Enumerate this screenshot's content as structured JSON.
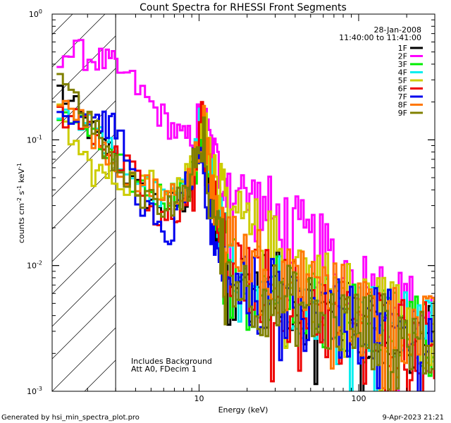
{
  "chart_data": {
    "type": "line",
    "title": "Count Spectra for RHESSI Front Segments",
    "xlabel": "Energy (keV)",
    "ylabel": "counts cm",
    "ylabel_sup1": "-2",
    "ylabel_mid": " s",
    "ylabel_sup2": "-1",
    "ylabel_end": " keV",
    "ylabel_sup3": "-1",
    "xscale": "log",
    "yscale": "log",
    "xlim": [
      1.2,
      300
    ],
    "ylim": [
      0.001,
      1
    ],
    "x_ticks": [
      {
        "v": 10,
        "label": "10"
      },
      {
        "v": 100,
        "label": "100"
      }
    ],
    "y_ticks": [
      {
        "v": 1,
        "label": "10",
        "sup": "0"
      },
      {
        "v": 0.1,
        "label": "10",
        "sup": "-1"
      },
      {
        "v": 0.01,
        "label": "10",
        "sup": "-2"
      },
      {
        "v": 0.001,
        "label": "10",
        "sup": "-3"
      }
    ],
    "hatch_limit_kev": 3,
    "date": "28-Jan-2008",
    "time_range": "11:40:00 to 11:41:00",
    "annotation1": "Includes Background",
    "annotation2": "Att A0, FDecim 1",
    "series": [
      {
        "name": "1F",
        "color": "#000000",
        "anchors": [
          [
            1.3,
            0.26
          ],
          [
            2,
            0.13
          ],
          [
            2.5,
            0.09
          ],
          [
            3,
            0.075
          ],
          [
            4,
            0.04
          ],
          [
            6,
            0.03
          ],
          [
            8,
            0.032
          ],
          [
            9.5,
            0.05
          ],
          [
            10.5,
            0.13
          ],
          [
            11.3,
            0.05
          ],
          [
            13,
            0.02
          ],
          [
            16,
            0.009
          ],
          [
            22,
            0.007
          ],
          [
            35,
            0.006
          ],
          [
            60,
            0.004
          ],
          [
            100,
            0.0035
          ],
          [
            180,
            0.0028
          ],
          [
            290,
            0.0025
          ]
        ]
      },
      {
        "name": "2F",
        "color": "#ff00ff",
        "anchors": [
          [
            1.3,
            0.49
          ],
          [
            1.8,
            0.48
          ],
          [
            2.5,
            0.42
          ],
          [
            3,
            0.38
          ],
          [
            4,
            0.27
          ],
          [
            5,
            0.19
          ],
          [
            6,
            0.15
          ],
          [
            7,
            0.12
          ],
          [
            8,
            0.1
          ],
          [
            9.5,
            0.11
          ],
          [
            10.5,
            0.14
          ],
          [
            11.5,
            0.1
          ],
          [
            13,
            0.06
          ],
          [
            17,
            0.04
          ],
          [
            25,
            0.028
          ],
          [
            40,
            0.018
          ],
          [
            60,
            0.012
          ],
          [
            90,
            0.008
          ],
          [
            140,
            0.006
          ],
          [
            200,
            0.0045
          ],
          [
            290,
            0.0038
          ]
        ]
      },
      {
        "name": "3F",
        "color": "#00ee00",
        "anchors": [
          [
            1.3,
            0.18
          ],
          [
            2,
            0.12
          ],
          [
            2.5,
            0.08
          ],
          [
            3,
            0.065
          ],
          [
            4,
            0.045
          ],
          [
            6,
            0.035
          ],
          [
            8,
            0.04
          ],
          [
            9.5,
            0.06
          ],
          [
            10.5,
            0.16
          ],
          [
            11.3,
            0.05
          ],
          [
            13,
            0.022
          ],
          [
            16,
            0.01
          ],
          [
            22,
            0.008
          ],
          [
            35,
            0.006
          ],
          [
            60,
            0.0045
          ],
          [
            100,
            0.0036
          ],
          [
            180,
            0.003
          ],
          [
            290,
            0.0026
          ]
        ]
      },
      {
        "name": "4F",
        "color": "#00eeee",
        "anchors": [
          [
            1.3,
            0.19
          ],
          [
            2,
            0.13
          ],
          [
            2.5,
            0.1
          ],
          [
            3,
            0.07
          ],
          [
            4,
            0.05
          ],
          [
            6,
            0.032
          ],
          [
            8,
            0.04
          ],
          [
            9.5,
            0.07
          ],
          [
            10.5,
            0.2
          ],
          [
            11.3,
            0.06
          ],
          [
            13,
            0.024
          ],
          [
            16,
            0.012
          ],
          [
            22,
            0.008
          ],
          [
            35,
            0.0065
          ],
          [
            60,
            0.005
          ],
          [
            100,
            0.004
          ],
          [
            180,
            0.0031
          ],
          [
            290,
            0.0027
          ]
        ]
      },
      {
        "name": "5F",
        "color": "#cccc00",
        "anchors": [
          [
            1.3,
            0.17
          ],
          [
            1.7,
            0.09
          ],
          [
            2.2,
            0.055
          ],
          [
            3,
            0.05
          ],
          [
            4,
            0.045
          ],
          [
            6,
            0.045
          ],
          [
            8,
            0.05
          ],
          [
            9.5,
            0.08
          ],
          [
            10.5,
            0.18
          ],
          [
            11.3,
            0.08
          ],
          [
            13,
            0.04
          ],
          [
            17,
            0.025
          ],
          [
            25,
            0.015
          ],
          [
            40,
            0.01
          ],
          [
            60,
            0.007
          ],
          [
            100,
            0.005
          ],
          [
            180,
            0.0038
          ],
          [
            290,
            0.003
          ]
        ]
      },
      {
        "name": "6F",
        "color": "#ee0000",
        "anchors": [
          [
            1.3,
            0.17
          ],
          [
            2,
            0.13
          ],
          [
            2.5,
            0.1
          ],
          [
            3,
            0.07
          ],
          [
            4,
            0.05
          ],
          [
            5.5,
            0.02
          ],
          [
            6.5,
            0.024
          ],
          [
            8,
            0.03
          ],
          [
            9.5,
            0.05
          ],
          [
            10.5,
            0.14
          ],
          [
            11.3,
            0.05
          ],
          [
            13,
            0.022
          ],
          [
            16,
            0.01
          ],
          [
            22,
            0.0075
          ],
          [
            35,
            0.006
          ],
          [
            60,
            0.0045
          ],
          [
            100,
            0.0036
          ],
          [
            180,
            0.003
          ],
          [
            290,
            0.0026
          ]
        ]
      },
      {
        "name": "7F",
        "color": "#0000ee",
        "anchors": [
          [
            1.3,
            0.17
          ],
          [
            2,
            0.16
          ],
          [
            2.5,
            0.14
          ],
          [
            3,
            0.12
          ],
          [
            3.5,
            0.08
          ],
          [
            4,
            0.04
          ],
          [
            5,
            0.025
          ],
          [
            6,
            0.015
          ],
          [
            7,
            0.02
          ],
          [
            8,
            0.04
          ],
          [
            9.5,
            0.05
          ],
          [
            10.5,
            0.05
          ],
          [
            11.3,
            0.03
          ],
          [
            13,
            0.015
          ],
          [
            16,
            0.008
          ],
          [
            22,
            0.006
          ],
          [
            35,
            0.005
          ],
          [
            60,
            0.004
          ],
          [
            100,
            0.0034
          ],
          [
            180,
            0.003
          ],
          [
            290,
            0.0026
          ]
        ]
      },
      {
        "name": "8F",
        "color": "#ff7700",
        "anchors": [
          [
            1.3,
            0.22
          ],
          [
            2,
            0.13
          ],
          [
            2.5,
            0.09
          ],
          [
            3,
            0.065
          ],
          [
            4,
            0.045
          ],
          [
            6,
            0.035
          ],
          [
            8,
            0.04
          ],
          [
            9.5,
            0.06
          ],
          [
            10.5,
            0.15
          ],
          [
            11.3,
            0.06
          ],
          [
            13,
            0.025
          ],
          [
            17,
            0.015
          ],
          [
            25,
            0.01
          ],
          [
            40,
            0.008
          ],
          [
            60,
            0.006
          ],
          [
            100,
            0.0045
          ],
          [
            180,
            0.0035
          ],
          [
            290,
            0.0028
          ]
        ]
      },
      {
        "name": "9F",
        "color": "#808000",
        "anchors": [
          [
            1.3,
            0.38
          ],
          [
            2,
            0.15
          ],
          [
            2.5,
            0.09
          ],
          [
            3,
            0.06
          ],
          [
            4,
            0.04
          ],
          [
            6,
            0.03
          ],
          [
            8,
            0.035
          ],
          [
            9.5,
            0.055
          ],
          [
            10.5,
            0.12
          ],
          [
            11.3,
            0.045
          ],
          [
            13,
            0.018
          ],
          [
            16,
            0.008
          ],
          [
            22,
            0.006
          ],
          [
            35,
            0.005
          ],
          [
            60,
            0.004
          ],
          [
            100,
            0.0032
          ],
          [
            180,
            0.0028
          ],
          [
            290,
            0.0025
          ]
        ]
      }
    ]
  },
  "footer": {
    "generated_by": "Generated by hsi_min_spectra_plot.pro",
    "timestamp": "9-Apr-2023 21:21"
  }
}
